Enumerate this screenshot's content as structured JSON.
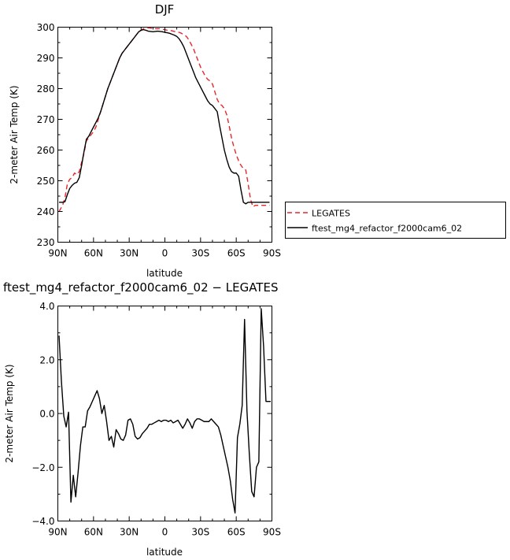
{
  "chart_data": [
    {
      "type": "line",
      "title": "DJF",
      "xlabel": "latitude",
      "ylabel": "2-meter Air Temp (K)",
      "xlim": [
        90,
        -90
      ],
      "ylim": [
        230,
        300
      ],
      "x_tick_values": [
        90,
        60,
        30,
        0,
        -30,
        -60,
        -90
      ],
      "x_tick_labels": [
        "90N",
        "60N",
        "30N",
        "0",
        "30S",
        "60S",
        "90S"
      ],
      "y_tick_values": [
        230,
        240,
        250,
        260,
        270,
        280,
        290,
        300
      ],
      "y_tick_labels": [
        "230",
        "240",
        "250",
        "260",
        "270",
        "280",
        "290",
        "300"
      ],
      "legend_position": "right",
      "series": [
        {
          "name": "LEGATES",
          "color": "#e8252b",
          "dash": "dashed",
          "x": [
            89,
            86,
            84,
            82,
            80,
            78,
            76,
            74,
            72,
            70,
            68,
            66,
            64,
            62,
            60,
            58,
            56,
            54,
            52,
            50,
            48,
            46,
            44,
            42,
            40,
            38,
            36,
            34,
            32,
            30,
            28,
            26,
            24,
            22,
            20,
            18,
            16,
            14,
            12,
            10,
            8,
            6,
            4,
            2,
            0,
            -2,
            -4,
            -6,
            -8,
            -10,
            -12,
            -14,
            -16,
            -18,
            -20,
            -22,
            -24,
            -26,
            -28,
            -30,
            -32,
            -34,
            -36,
            -38,
            -40,
            -42,
            -44,
            -46,
            -48,
            -50,
            -52,
            -54,
            -56,
            -58,
            -60,
            -62,
            -64,
            -66,
            -68,
            -70,
            -72,
            -74,
            -76,
            -78,
            -80,
            -82,
            -84,
            -86,
            -88
          ],
          "values": [
            240.0,
            242.0,
            244.5,
            249.0,
            250.5,
            251.0,
            252.5,
            252.0,
            253.0,
            256.0,
            259.0,
            263.0,
            264.0,
            265.0,
            266.0,
            267.5,
            270.0,
            272.5,
            275.0,
            277.5,
            280.0,
            282.0,
            284.0,
            286.0,
            288.0,
            290.0,
            291.5,
            292.5,
            293.5,
            294.5,
            295.5,
            296.5,
            297.5,
            298.5,
            299.0,
            299.5,
            299.7,
            299.8,
            299.7,
            299.5,
            299.5,
            299.5,
            299.5,
            299.3,
            299.2,
            299.0,
            299.0,
            298.8,
            298.6,
            298.5,
            298.3,
            298.0,
            297.5,
            297.0,
            296.0,
            294.5,
            293.0,
            291.0,
            289.0,
            287.0,
            285.5,
            284.0,
            283.0,
            282.5,
            281.5,
            279.0,
            276.5,
            275.0,
            274.5,
            273.5,
            271.5,
            268.0,
            264.0,
            261.0,
            258.5,
            256.5,
            255.0,
            254.0,
            253.5,
            249.0,
            244.0,
            241.5,
            242.0,
            242.0,
            242.0,
            242.0,
            242.0,
            242.0,
            242.0
          ]
        },
        {
          "name": "ftest_mg4_refactor_f2000cam6_02",
          "color": "#000000",
          "dash": "solid",
          "x": [
            89,
            86,
            84,
            82,
            80,
            78,
            76,
            74,
            72,
            70,
            68,
            66,
            64,
            62,
            60,
            58,
            56,
            54,
            52,
            50,
            48,
            46,
            44,
            42,
            40,
            38,
            36,
            34,
            32,
            30,
            28,
            26,
            24,
            22,
            20,
            18,
            16,
            14,
            12,
            10,
            8,
            6,
            4,
            2,
            0,
            -2,
            -4,
            -6,
            -8,
            -10,
            -12,
            -14,
            -16,
            -18,
            -20,
            -22,
            -24,
            -26,
            -28,
            -30,
            -32,
            -34,
            -36,
            -38,
            -40,
            -42,
            -44,
            -46,
            -48,
            -50,
            -52,
            -54,
            -56,
            -58,
            -60,
            -62,
            -64,
            -66,
            -68,
            -70,
            -72,
            -74,
            -76,
            -78,
            -80,
            -82,
            -84,
            -86,
            -88
          ],
          "values": [
            243.0,
            243.0,
            243.2,
            245.5,
            247.5,
            248.5,
            249.2,
            249.5,
            251.0,
            255.0,
            259.5,
            263.5,
            264.5,
            266.0,
            267.5,
            269.0,
            270.5,
            272.5,
            275.0,
            277.5,
            280.0,
            282.0,
            284.0,
            286.0,
            288.0,
            290.0,
            291.5,
            292.5,
            293.5,
            294.5,
            295.5,
            296.5,
            297.5,
            298.5,
            299.0,
            299.2,
            299.0,
            298.7,
            298.6,
            298.5,
            298.6,
            298.7,
            298.6,
            298.5,
            298.3,
            298.2,
            298.0,
            297.7,
            297.4,
            297.0,
            296.2,
            295.0,
            293.5,
            291.5,
            289.5,
            287.5,
            285.5,
            283.5,
            282.0,
            280.5,
            279.0,
            277.5,
            276.0,
            275.0,
            274.5,
            273.5,
            272.5,
            268.0,
            264.0,
            260.0,
            257.0,
            254.5,
            253.0,
            252.5,
            252.5,
            251.5,
            247.0,
            243.0,
            242.5,
            243.0,
            243.0,
            243.0,
            243.0,
            243.0,
            243.0,
            243.0,
            243.0,
            243.0,
            243.0
          ]
        }
      ]
    },
    {
      "type": "line",
      "title": "ftest_mg4_refactor_f2000cam6_02 − LEGATES",
      "xlabel": "latitude",
      "ylabel": "2-meter Air Temp (K)",
      "xlim": [
        90,
        -90
      ],
      "ylim": [
        -4.0,
        4.0
      ],
      "x_tick_values": [
        90,
        60,
        30,
        0,
        -30,
        -60,
        -90
      ],
      "x_tick_labels": [
        "90N",
        "60N",
        "30N",
        "0",
        "30S",
        "60S",
        "90S"
      ],
      "y_tick_values": [
        -4.0,
        -2.0,
        0.0,
        2.0,
        4.0
      ],
      "y_tick_labels": [
        "−4.0",
        "−2.0",
        "0.0",
        "2.0",
        "4.0"
      ],
      "series": [
        {
          "color": "#000000",
          "dash": "solid",
          "x": [
            89,
            87,
            85,
            83,
            81,
            79,
            77,
            75,
            73,
            71,
            69,
            67,
            65,
            63,
            61,
            59,
            57,
            55,
            53,
            51,
            49,
            47,
            45,
            43,
            41,
            39,
            37,
            35,
            33,
            31,
            29,
            27,
            25,
            23,
            21,
            19,
            17,
            15,
            13,
            11,
            9,
            7,
            5,
            3,
            1,
            -1,
            -3,
            -5,
            -7,
            -9,
            -11,
            -13,
            -15,
            -17,
            -19,
            -21,
            -23,
            -25,
            -27,
            -29,
            -31,
            -33,
            -35,
            -37,
            -39,
            -41,
            -43,
            -45,
            -47,
            -49,
            -51,
            -53,
            -55,
            -57,
            -59,
            -61,
            -63,
            -65,
            -67,
            -69,
            -71,
            -73,
            -75,
            -77,
            -79,
            -81,
            -83,
            -85,
            -87,
            -89
          ],
          "values": [
            2.9,
            1.2,
            -0.1,
            -0.5,
            0.05,
            -3.3,
            -2.3,
            -3.1,
            -2.2,
            -1.2,
            -0.5,
            -0.5,
            0.1,
            0.25,
            0.45,
            0.65,
            0.85,
            0.55,
            0.0,
            0.3,
            -0.3,
            -1.0,
            -0.85,
            -1.25,
            -0.6,
            -0.75,
            -0.95,
            -1.0,
            -0.8,
            -0.25,
            -0.2,
            -0.4,
            -0.85,
            -0.95,
            -0.9,
            -0.75,
            -0.65,
            -0.55,
            -0.4,
            -0.4,
            -0.35,
            -0.3,
            -0.25,
            -0.3,
            -0.25,
            -0.25,
            -0.3,
            -0.25,
            -0.35,
            -0.3,
            -0.25,
            -0.4,
            -0.55,
            -0.4,
            -0.2,
            -0.35,
            -0.55,
            -0.3,
            -0.2,
            -0.2,
            -0.25,
            -0.3,
            -0.3,
            -0.3,
            -0.2,
            -0.3,
            -0.4,
            -0.5,
            -0.8,
            -1.2,
            -1.6,
            -2.0,
            -2.5,
            -3.2,
            -3.7,
            -0.9,
            -0.4,
            0.3,
            3.5,
            0.1,
            -1.5,
            -2.9,
            -3.1,
            -2.0,
            -1.8,
            3.9,
            2.5,
            0.45,
            0.45,
            0.45
          ]
        }
      ]
    }
  ]
}
